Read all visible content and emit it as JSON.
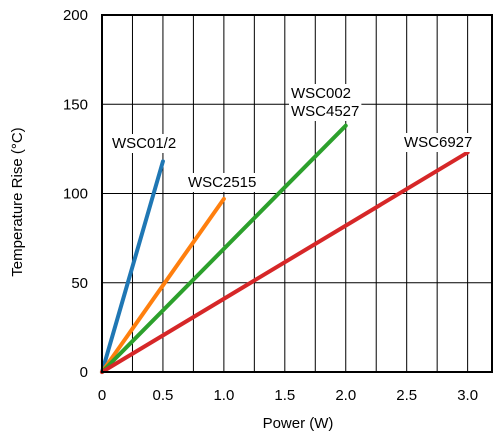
{
  "chart_data": {
    "type": "line",
    "title": "",
    "xlabel": "Power (W)",
    "ylabel": "Temperature Rise (°C)",
    "xlim": [
      0,
      3.2
    ],
    "ylim": [
      0,
      200
    ],
    "xticks": [
      0,
      0.5,
      1.0,
      1.5,
      2.0,
      2.5,
      3.0
    ],
    "xtick_labels": [
      "0",
      "0.5",
      "1.0",
      "1.5",
      "2.0",
      "2.5",
      "3.0"
    ],
    "yticks": [
      0,
      50,
      100,
      150,
      200
    ],
    "ytick_labels": [
      "0",
      "50",
      "100",
      "150",
      "200"
    ],
    "grid": true,
    "legend": "none",
    "series": [
      {
        "name": "WSC01/2",
        "color": "#1f77b4",
        "points": [
          [
            0,
            0
          ],
          [
            0.5,
            118
          ]
        ]
      },
      {
        "name": "WSC2515",
        "color": "#ff7f0e",
        "points": [
          [
            0,
            0
          ],
          [
            1.0,
            97
          ]
        ]
      },
      {
        "name": "WSC002\nWSC4527",
        "color": "#2ca02c",
        "points": [
          [
            0,
            0
          ],
          [
            2.0,
            138
          ]
        ]
      },
      {
        "name": "WSC6927",
        "color": "#d62728",
        "points": [
          [
            0,
            0
          ],
          [
            3.0,
            123
          ]
        ]
      }
    ]
  }
}
